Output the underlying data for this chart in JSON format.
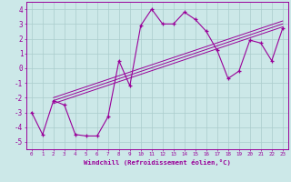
{
  "xlabel": "Windchill (Refroidissement éolien,°C)",
  "bg_color": "#cce8e8",
  "line_color": "#990099",
  "grid_color": "#aacccc",
  "x_data": [
    0,
    1,
    2,
    3,
    4,
    5,
    6,
    7,
    8,
    9,
    10,
    11,
    12,
    13,
    14,
    15,
    16,
    17,
    18,
    19,
    20,
    21,
    22,
    23
  ],
  "y_main": [
    -3.0,
    -4.5,
    -2.2,
    -2.5,
    -4.5,
    -4.6,
    -4.6,
    -3.3,
    0.5,
    -1.2,
    2.9,
    4.0,
    3.0,
    3.0,
    3.8,
    3.3,
    2.5,
    1.2,
    -0.7,
    -0.2,
    1.9,
    1.7,
    0.5,
    2.7
  ],
  "reg_x_start": 2,
  "reg_x_end": 23,
  "reg_lines": [
    [
      -2.2,
      3.0
    ],
    [
      -2.0,
      3.2
    ],
    [
      -2.4,
      2.8
    ]
  ],
  "ylim": [
    -5.5,
    4.5
  ],
  "yticks": [
    -5,
    -4,
    -3,
    -2,
    -1,
    0,
    1,
    2,
    3,
    4
  ],
  "xlim": [
    -0.5,
    23.5
  ]
}
